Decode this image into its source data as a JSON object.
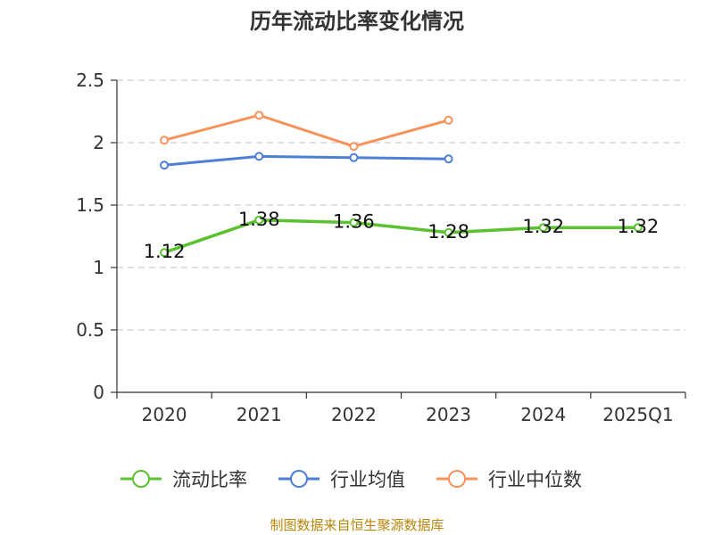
{
  "chart_data": {
    "type": "line",
    "title": "历年流动比率变化情况",
    "categories": [
      "2020",
      "2021",
      "2022",
      "2023",
      "2024",
      "2025Q1"
    ],
    "yticks": [
      "0",
      "0.5",
      "1",
      "1.5",
      "2",
      "2.5"
    ],
    "ylim": [
      0,
      2.5
    ],
    "grid": true,
    "legend_position": "bottom",
    "series": [
      {
        "name": "流动比率",
        "color": "#5bc130",
        "values": [
          1.12,
          1.38,
          1.36,
          1.28,
          1.32,
          1.32
        ],
        "labels": [
          "1.12",
          "1.38",
          "1.36",
          "1.28",
          "1.32",
          "1.32"
        ]
      },
      {
        "name": "行业均值",
        "color": "#4e7fd6",
        "values": [
          1.82,
          1.89,
          1.88,
          1.87,
          null,
          null
        ]
      },
      {
        "name": "行业中位数",
        "color": "#f5935a",
        "values": [
          2.02,
          2.22,
          1.97,
          2.18,
          null,
          null
        ]
      }
    ]
  },
  "source": "制图数据来自恒生聚源数据库"
}
